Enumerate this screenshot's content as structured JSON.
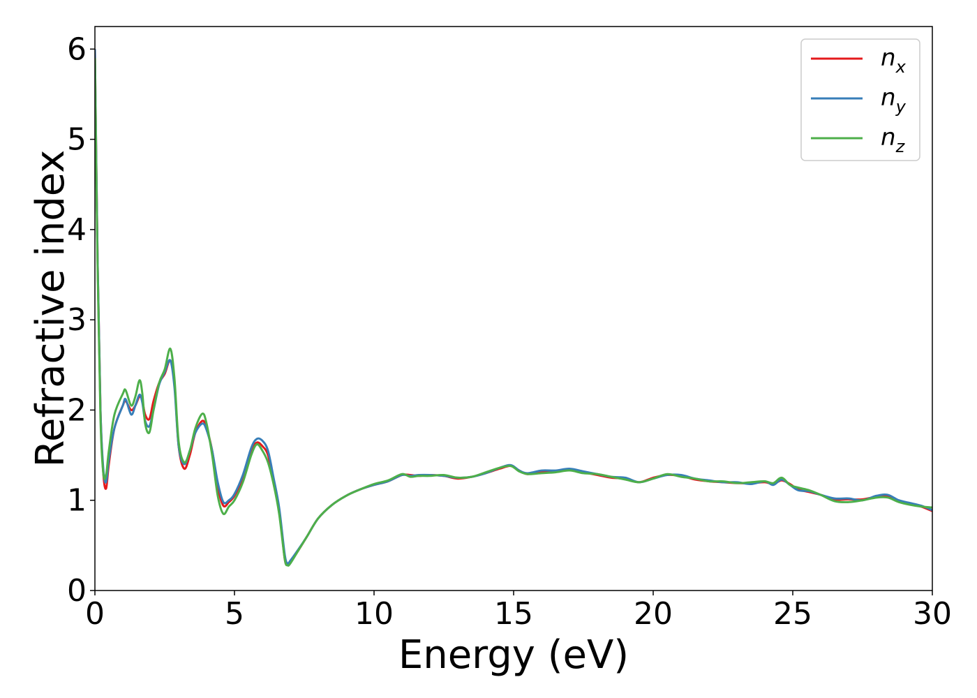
{
  "chart_data": {
    "type": "line",
    "xlabel": "Energy (eV)",
    "ylabel": "Refractive index",
    "xlim": [
      0,
      30
    ],
    "ylim": [
      0,
      6.25
    ],
    "xticks": [
      0,
      5,
      10,
      15,
      20,
      25,
      30
    ],
    "yticks": [
      0,
      1,
      2,
      3,
      4,
      5,
      6
    ],
    "grid": false,
    "legend_position": "top-right",
    "series": [
      {
        "name": "n_x",
        "label_base": "n",
        "label_sub": "x",
        "color": "#e41a1c",
        "x": [
          0,
          0.1,
          0.2,
          0.3,
          0.4,
          0.5,
          0.7,
          1.0,
          1.1,
          1.3,
          1.45,
          1.6,
          1.7,
          1.8,
          1.95,
          2.1,
          2.3,
          2.5,
          2.7,
          2.85,
          3.0,
          3.2,
          3.4,
          3.6,
          3.85,
          4.0,
          4.2,
          4.4,
          4.6,
          4.8,
          5.0,
          5.3,
          5.6,
          5.8,
          6.0,
          6.2,
          6.4,
          6.6,
          6.8,
          6.9,
          7.0,
          7.3,
          7.6,
          8.0,
          8.5,
          9.0,
          9.5,
          10.0,
          10.5,
          11.0,
          11.3,
          11.6,
          12.0,
          12.5,
          13.0,
          13.5,
          14.0,
          14.5,
          14.9,
          15.2,
          15.5,
          16.0,
          16.5,
          17.0,
          17.5,
          18.0,
          18.5,
          19.0,
          19.5,
          20.0,
          20.5,
          21.0,
          21.5,
          22.0,
          22.5,
          23.0,
          23.5,
          24.0,
          24.3,
          24.6,
          24.9,
          25.2,
          25.6,
          26.0,
          26.5,
          27.0,
          27.5,
          28.0,
          28.4,
          28.8,
          29.2,
          29.6,
          30.0
        ],
        "y": [
          6.0,
          3.6,
          2.0,
          1.3,
          1.13,
          1.4,
          1.8,
          2.05,
          2.1,
          2.0,
          2.05,
          2.15,
          2.1,
          1.95,
          1.9,
          2.1,
          2.3,
          2.4,
          2.55,
          2.3,
          1.6,
          1.35,
          1.5,
          1.75,
          1.88,
          1.8,
          1.55,
          1.15,
          0.94,
          0.98,
          1.05,
          1.25,
          1.55,
          1.64,
          1.6,
          1.5,
          1.2,
          0.9,
          0.35,
          0.3,
          0.32,
          0.45,
          0.6,
          0.8,
          0.95,
          1.05,
          1.12,
          1.17,
          1.21,
          1.28,
          1.28,
          1.27,
          1.28,
          1.27,
          1.24,
          1.26,
          1.3,
          1.35,
          1.38,
          1.33,
          1.29,
          1.32,
          1.32,
          1.34,
          1.31,
          1.28,
          1.25,
          1.24,
          1.2,
          1.25,
          1.28,
          1.27,
          1.23,
          1.21,
          1.2,
          1.19,
          1.19,
          1.2,
          1.18,
          1.22,
          1.18,
          1.12,
          1.09,
          1.06,
          1.01,
          1.01,
          1.01,
          1.04,
          1.05,
          0.99,
          0.96,
          0.93,
          0.88
        ]
      },
      {
        "name": "n_y",
        "label_base": "n",
        "label_sub": "y",
        "color": "#377eb8",
        "x": [
          0,
          0.1,
          0.2,
          0.3,
          0.4,
          0.5,
          0.7,
          1.0,
          1.1,
          1.3,
          1.45,
          1.6,
          1.7,
          1.8,
          1.95,
          2.1,
          2.3,
          2.5,
          2.7,
          2.85,
          3.0,
          3.2,
          3.4,
          3.6,
          3.85,
          4.0,
          4.2,
          4.4,
          4.6,
          4.8,
          5.0,
          5.3,
          5.6,
          5.8,
          6.0,
          6.2,
          6.4,
          6.6,
          6.8,
          6.9,
          7.0,
          7.3,
          7.6,
          8.0,
          8.5,
          9.0,
          9.5,
          10.0,
          10.5,
          11.0,
          11.3,
          11.6,
          12.0,
          12.5,
          13.0,
          13.5,
          14.0,
          14.5,
          14.9,
          15.2,
          15.5,
          16.0,
          16.5,
          17.0,
          17.5,
          18.0,
          18.5,
          19.0,
          19.5,
          20.0,
          20.5,
          21.0,
          21.5,
          22.0,
          22.5,
          23.0,
          23.5,
          24.0,
          24.3,
          24.6,
          24.9,
          25.2,
          25.6,
          26.0,
          26.5,
          27.0,
          27.5,
          28.0,
          28.4,
          28.8,
          29.2,
          29.6,
          30.0
        ],
        "y": [
          6.0,
          3.6,
          2.0,
          1.35,
          1.2,
          1.45,
          1.8,
          2.05,
          2.12,
          1.95,
          2.05,
          2.17,
          2.08,
          1.88,
          1.82,
          2.0,
          2.28,
          2.42,
          2.55,
          2.25,
          1.6,
          1.4,
          1.55,
          1.75,
          1.85,
          1.78,
          1.55,
          1.2,
          0.98,
          1.0,
          1.07,
          1.28,
          1.58,
          1.68,
          1.66,
          1.55,
          1.25,
          0.92,
          0.4,
          0.3,
          0.33,
          0.46,
          0.6,
          0.8,
          0.95,
          1.05,
          1.12,
          1.17,
          1.21,
          1.28,
          1.27,
          1.28,
          1.28,
          1.27,
          1.25,
          1.26,
          1.3,
          1.36,
          1.39,
          1.33,
          1.3,
          1.33,
          1.33,
          1.35,
          1.32,
          1.29,
          1.26,
          1.25,
          1.2,
          1.24,
          1.28,
          1.28,
          1.24,
          1.22,
          1.2,
          1.2,
          1.18,
          1.21,
          1.17,
          1.23,
          1.17,
          1.11,
          1.1,
          1.06,
          1.02,
          1.02,
          1.0,
          1.05,
          1.06,
          1.0,
          0.97,
          0.94,
          0.89
        ]
      },
      {
        "name": "n_z",
        "label_base": "n",
        "label_sub": "z",
        "color": "#4daf4a",
        "x": [
          0,
          0.1,
          0.2,
          0.3,
          0.4,
          0.5,
          0.7,
          1.0,
          1.1,
          1.3,
          1.45,
          1.6,
          1.7,
          1.8,
          1.95,
          2.1,
          2.3,
          2.5,
          2.7,
          2.85,
          3.0,
          3.2,
          3.4,
          3.6,
          3.85,
          4.0,
          4.2,
          4.4,
          4.6,
          4.8,
          5.0,
          5.3,
          5.6,
          5.8,
          6.0,
          6.2,
          6.4,
          6.6,
          6.8,
          6.9,
          7.0,
          7.3,
          7.6,
          8.0,
          8.5,
          9.0,
          9.5,
          10.0,
          10.5,
          11.0,
          11.3,
          11.6,
          12.0,
          12.5,
          13.0,
          13.5,
          14.0,
          14.5,
          14.9,
          15.2,
          15.5,
          16.0,
          16.5,
          17.0,
          17.5,
          18.0,
          18.5,
          19.0,
          19.5,
          20.0,
          20.5,
          21.0,
          21.5,
          22.0,
          22.5,
          23.0,
          23.5,
          24.0,
          24.3,
          24.6,
          24.9,
          25.2,
          25.6,
          26.0,
          26.5,
          27.0,
          27.5,
          28.0,
          28.4,
          28.8,
          29.2,
          29.6,
          30.0
        ],
        "y": [
          5.9,
          3.5,
          1.9,
          1.3,
          1.28,
          1.55,
          1.95,
          2.18,
          2.22,
          2.05,
          2.15,
          2.33,
          2.18,
          1.85,
          1.75,
          2.0,
          2.3,
          2.45,
          2.68,
          2.35,
          1.65,
          1.42,
          1.55,
          1.8,
          1.96,
          1.85,
          1.5,
          1.05,
          0.85,
          0.93,
          1.0,
          1.2,
          1.5,
          1.62,
          1.55,
          1.42,
          1.18,
          0.85,
          0.35,
          0.28,
          0.3,
          0.45,
          0.6,
          0.8,
          0.95,
          1.05,
          1.12,
          1.18,
          1.22,
          1.29,
          1.26,
          1.27,
          1.27,
          1.28,
          1.25,
          1.26,
          1.31,
          1.36,
          1.38,
          1.32,
          1.29,
          1.3,
          1.31,
          1.33,
          1.3,
          1.29,
          1.26,
          1.23,
          1.2,
          1.24,
          1.29,
          1.26,
          1.24,
          1.21,
          1.21,
          1.19,
          1.2,
          1.21,
          1.19,
          1.25,
          1.17,
          1.14,
          1.11,
          1.06,
          0.99,
          0.98,
          1.0,
          1.03,
          1.03,
          0.98,
          0.95,
          0.93,
          0.92
        ]
      }
    ]
  }
}
